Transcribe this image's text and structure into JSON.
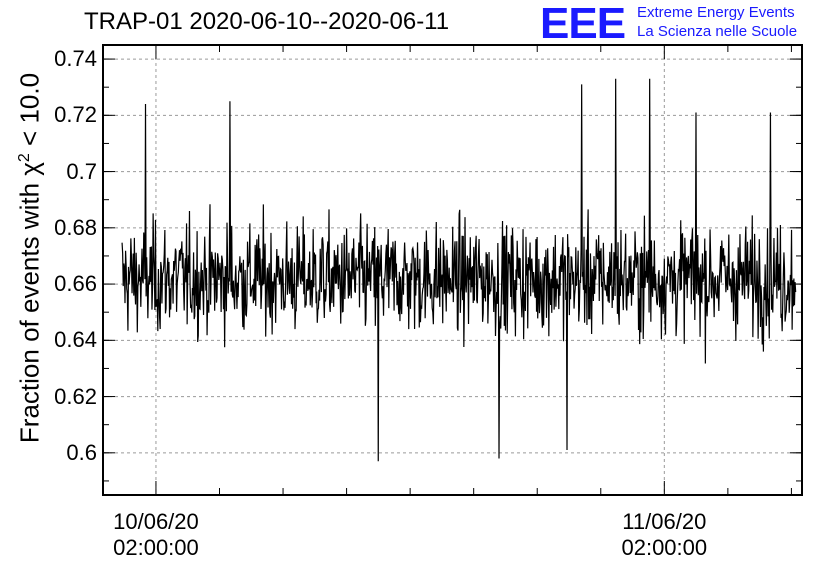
{
  "header": {
    "title": "TRAP-01 2020-06-10--2020-06-11",
    "logo_text": "EEE",
    "logo_line1": "Extreme Energy Events",
    "logo_line2": "La Scienza nelle Scuole"
  },
  "colors": {
    "logo": "#1a1aff",
    "series": "#000000",
    "grid": "#9a9a9a"
  },
  "chart_data": {
    "type": "line",
    "title": "TRAP-01 2020-06-10--2020-06-11",
    "xlabel": "",
    "ylabel_prefix": "Fraction of events with ",
    "ylabel_symbol": "χ",
    "ylabel_sup": "2",
    "ylabel_suffix": " < 10.0",
    "ylim": [
      0.585,
      0.745
    ],
    "xlim_hours": [
      -2.5,
      30.5
    ],
    "x_reference": "2020-06-10 02:00:00",
    "data_range_hours": [
      -1.6,
      30.2
    ],
    "y_ticks": [
      {
        "value": 0.6,
        "label": "0.6"
      },
      {
        "value": 0.62,
        "label": "0.62"
      },
      {
        "value": 0.64,
        "label": "0.64"
      },
      {
        "value": 0.66,
        "label": "0.66"
      },
      {
        "value": 0.68,
        "label": "0.68"
      },
      {
        "value": 0.7,
        "label": "0.7"
      },
      {
        "value": 0.72,
        "label": "0.72"
      },
      {
        "value": 0.74,
        "label": "0.74"
      }
    ],
    "x_ticks": [
      {
        "hours": 0,
        "line1": "10/06/20",
        "line2": "02:00:00"
      },
      {
        "hours": 24,
        "line1": "11/06/20",
        "line2": "02:00:00"
      }
    ],
    "grid": true,
    "legend": "none",
    "series": [
      {
        "description_mean": 0.662,
        "typical_range": [
          0.625,
          0.7
        ],
        "extremes": [
          {
            "hours": -0.5,
            "value": 0.724
          },
          {
            "hours": 3.5,
            "value": 0.725
          },
          {
            "hours": 10.5,
            "value": 0.597
          },
          {
            "hours": 16.2,
            "value": 0.598
          },
          {
            "hours": 19.4,
            "value": 0.601
          },
          {
            "hours": 20.1,
            "value": 0.731
          },
          {
            "hours": 21.7,
            "value": 0.733
          },
          {
            "hours": 23.3,
            "value": 0.733
          },
          {
            "hours": 25.5,
            "value": 0.721
          },
          {
            "hours": 29.0,
            "value": 0.721
          }
        ]
      }
    ]
  }
}
